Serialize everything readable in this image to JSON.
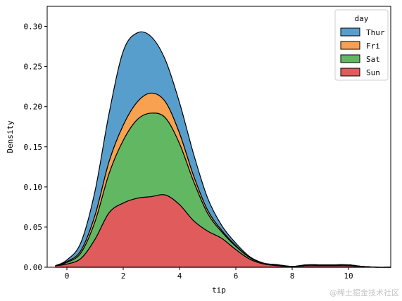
{
  "chart_data": {
    "type": "area",
    "stacked": true,
    "title": "",
    "xlabel": "tip",
    "ylabel": "Density",
    "xlim": [
      -0.7,
      11.5
    ],
    "ylim": [
      0,
      0.325
    ],
    "xticks": [
      0,
      2,
      4,
      6,
      8,
      10
    ],
    "xtick_labels": [
      "0",
      "2",
      "4",
      "6",
      "8",
      "10"
    ],
    "yticks": [
      0,
      0.05,
      0.1,
      0.15,
      0.2,
      0.25,
      0.3
    ],
    "ytick_labels": [
      "0.00",
      "0.05",
      "0.10",
      "0.15",
      "0.20",
      "0.25",
      "0.30"
    ],
    "grid": false,
    "legend": {
      "title": "day",
      "position": "top-right"
    },
    "x": [
      -0.4,
      0,
      0.5,
      1,
      1.5,
      2,
      2.5,
      3,
      3.5,
      4,
      4.5,
      5,
      5.5,
      6,
      6.5,
      7,
      7.5,
      8,
      8.5,
      9,
      9.5,
      10,
      10.5,
      11,
      11.5
    ],
    "series": [
      {
        "name": "Sun",
        "color": "#e05c5c",
        "values": [
          0.002,
          0.004,
          0.011,
          0.035,
          0.068,
          0.08,
          0.086,
          0.088,
          0.09,
          0.078,
          0.058,
          0.045,
          0.036,
          0.022,
          0.01,
          0.004,
          0.002,
          0.001,
          0.002,
          0.002,
          0.002,
          0.002,
          0.001,
          0.0,
          0.0
        ]
      },
      {
        "name": "Sat",
        "color": "#62b862",
        "values": [
          0.0,
          0.002,
          0.007,
          0.022,
          0.049,
          0.078,
          0.098,
          0.104,
          0.096,
          0.076,
          0.049,
          0.022,
          0.008,
          0.004,
          0.002,
          0.001,
          0.001,
          0.0,
          0.001,
          0.001,
          0.001,
          0.001,
          0.0,
          0.0,
          0.0
        ]
      },
      {
        "name": "Fri",
        "color": "#f8a151",
        "values": [
          0.0,
          0.001,
          0.003,
          0.008,
          0.015,
          0.019,
          0.022,
          0.025,
          0.02,
          0.013,
          0.007,
          0.004,
          0.002,
          0.001,
          0.0,
          0.0,
          0.0,
          0.0,
          0.0,
          0.0,
          0.0,
          0.0,
          0.0,
          0.0,
          0.0
        ]
      },
      {
        "name": "Thur",
        "color": "#589ecd",
        "values": [
          0.0,
          0.002,
          0.01,
          0.03,
          0.06,
          0.092,
          0.086,
          0.07,
          0.052,
          0.038,
          0.027,
          0.015,
          0.006,
          0.003,
          0.001,
          0.0,
          0.0,
          0.0,
          0.0,
          0.0,
          0.0,
          0.0,
          0.0,
          0.0,
          0.0
        ]
      }
    ],
    "legend_order": [
      "Thur",
      "Fri",
      "Sat",
      "Sun"
    ]
  },
  "watermark": "@稀土掘金技术社区"
}
